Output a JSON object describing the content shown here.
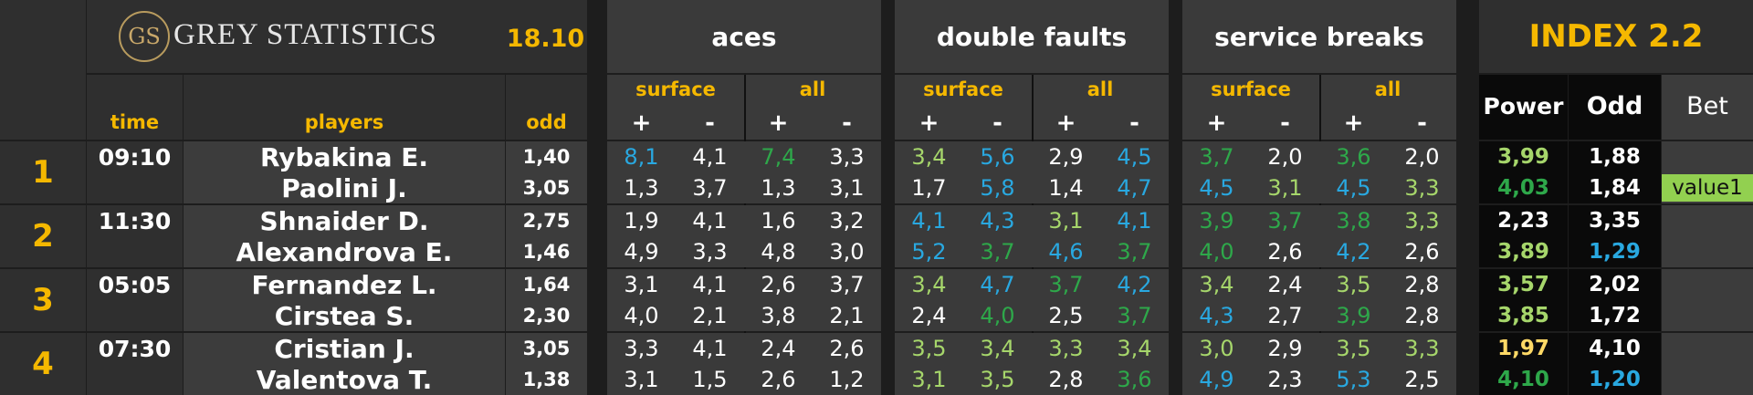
{
  "header": {
    "logo_mark": "GS",
    "brand": "GREY STATISTICS",
    "date": "18.10",
    "sections": [
      "aces",
      "double faults",
      "service breaks"
    ],
    "index_title": "INDEX 2.2",
    "col_time": "time",
    "col_players": "players",
    "col_odd": "odd",
    "sub_surface": "surface",
    "sub_all": "all",
    "plus": "+",
    "minus": "-",
    "col_power": "Power",
    "col_odd2": "Odd",
    "col_bet": "Bet"
  },
  "colors": {
    "white": "#ffffff",
    "blue": "#29a8e0",
    "green": "#2ea84a",
    "lightgreen": "#a6d66b",
    "yellow": "#ffd966",
    "accent": "#f5b800",
    "value_bg": "#92d050"
  },
  "matches": [
    {
      "num": "1",
      "time": "09:10",
      "players": [
        {
          "name": "Rybakina E.",
          "odd": "1,40",
          "stats": [
            [
              "8,1",
              "blue"
            ],
            [
              "4,1",
              "white"
            ],
            [
              "7,4",
              "green"
            ],
            [
              "3,3",
              "white"
            ],
            [
              "3,4",
              "lightgreen"
            ],
            [
              "5,6",
              "blue"
            ],
            [
              "2,9",
              "white"
            ],
            [
              "4,5",
              "blue"
            ],
            [
              "3,7",
              "green"
            ],
            [
              "2,0",
              "white"
            ],
            [
              "3,6",
              "green"
            ],
            [
              "2,0",
              "white"
            ]
          ],
          "power": [
            "3,99",
            "lightgreen"
          ],
          "odd2": [
            "1,88",
            "white"
          ],
          "bet": ""
        },
        {
          "name": "Paolini J.",
          "odd": "3,05",
          "stats": [
            [
              "1,3",
              "white"
            ],
            [
              "3,7",
              "white"
            ],
            [
              "1,3",
              "white"
            ],
            [
              "3,1",
              "white"
            ],
            [
              "1,7",
              "white"
            ],
            [
              "5,8",
              "blue"
            ],
            [
              "1,4",
              "white"
            ],
            [
              "4,7",
              "blue"
            ],
            [
              "4,5",
              "blue"
            ],
            [
              "3,1",
              "lightgreen"
            ],
            [
              "4,5",
              "blue"
            ],
            [
              "3,3",
              "lightgreen"
            ]
          ],
          "power": [
            "4,03",
            "green"
          ],
          "odd2": [
            "1,84",
            "white"
          ],
          "bet": "value1"
        }
      ]
    },
    {
      "num": "2",
      "time": "11:30",
      "players": [
        {
          "name": "Shnaider D.",
          "odd": "2,75",
          "stats": [
            [
              "1,9",
              "white"
            ],
            [
              "4,1",
              "white"
            ],
            [
              "1,6",
              "white"
            ],
            [
              "3,2",
              "white"
            ],
            [
              "4,1",
              "blue"
            ],
            [
              "4,3",
              "blue"
            ],
            [
              "3,1",
              "lightgreen"
            ],
            [
              "4,1",
              "blue"
            ],
            [
              "3,9",
              "green"
            ],
            [
              "3,7",
              "green"
            ],
            [
              "3,8",
              "green"
            ],
            [
              "3,3",
              "lightgreen"
            ]
          ],
          "power": [
            "2,23",
            "white"
          ],
          "odd2": [
            "3,35",
            "white"
          ],
          "bet": ""
        },
        {
          "name": "Alexandrova E.",
          "odd": "1,46",
          "stats": [
            [
              "4,9",
              "white"
            ],
            [
              "3,3",
              "white"
            ],
            [
              "4,8",
              "white"
            ],
            [
              "3,0",
              "white"
            ],
            [
              "5,2",
              "blue"
            ],
            [
              "3,7",
              "green"
            ],
            [
              "4,6",
              "blue"
            ],
            [
              "3,7",
              "green"
            ],
            [
              "4,0",
              "green"
            ],
            [
              "2,6",
              "white"
            ],
            [
              "4,2",
              "blue"
            ],
            [
              "2,6",
              "white"
            ]
          ],
          "power": [
            "3,89",
            "lightgreen"
          ],
          "odd2": [
            "1,29",
            "blue"
          ],
          "bet": ""
        }
      ]
    },
    {
      "num": "3",
      "time": "05:05",
      "players": [
        {
          "name": "Fernandez L.",
          "odd": "1,64",
          "stats": [
            [
              "3,1",
              "white"
            ],
            [
              "4,1",
              "white"
            ],
            [
              "2,6",
              "white"
            ],
            [
              "3,7",
              "white"
            ],
            [
              "3,4",
              "lightgreen"
            ],
            [
              "4,7",
              "blue"
            ],
            [
              "3,7",
              "green"
            ],
            [
              "4,2",
              "blue"
            ],
            [
              "3,4",
              "lightgreen"
            ],
            [
              "2,4",
              "white"
            ],
            [
              "3,5",
              "lightgreen"
            ],
            [
              "2,8",
              "white"
            ]
          ],
          "power": [
            "3,57",
            "lightgreen"
          ],
          "odd2": [
            "2,02",
            "white"
          ],
          "bet": ""
        },
        {
          "name": "Cirstea S.",
          "odd": "2,30",
          "stats": [
            [
              "4,0",
              "white"
            ],
            [
              "2,1",
              "white"
            ],
            [
              "3,8",
              "white"
            ],
            [
              "2,1",
              "white"
            ],
            [
              "2,4",
              "white"
            ],
            [
              "4,0",
              "green"
            ],
            [
              "2,5",
              "white"
            ],
            [
              "3,7",
              "green"
            ],
            [
              "4,3",
              "blue"
            ],
            [
              "2,7",
              "white"
            ],
            [
              "3,9",
              "green"
            ],
            [
              "2,8",
              "white"
            ]
          ],
          "power": [
            "3,85",
            "lightgreen"
          ],
          "odd2": [
            "1,72",
            "white"
          ],
          "bet": ""
        }
      ]
    },
    {
      "num": "4",
      "time": "07:30",
      "players": [
        {
          "name": "Cristian J.",
          "odd": "3,05",
          "stats": [
            [
              "3,3",
              "white"
            ],
            [
              "4,1",
              "white"
            ],
            [
              "2,4",
              "white"
            ],
            [
              "2,6",
              "white"
            ],
            [
              "3,5",
              "lightgreen"
            ],
            [
              "3,4",
              "lightgreen"
            ],
            [
              "3,3",
              "lightgreen"
            ],
            [
              "3,4",
              "lightgreen"
            ],
            [
              "3,0",
              "lightgreen"
            ],
            [
              "2,9",
              "white"
            ],
            [
              "3,5",
              "lightgreen"
            ],
            [
              "3,3",
              "lightgreen"
            ]
          ],
          "power": [
            "1,97",
            "yellow"
          ],
          "odd2": [
            "4,10",
            "white"
          ],
          "bet": ""
        },
        {
          "name": "Valentova T.",
          "odd": "1,38",
          "stats": [
            [
              "3,1",
              "white"
            ],
            [
              "1,5",
              "white"
            ],
            [
              "2,6",
              "white"
            ],
            [
              "1,2",
              "white"
            ],
            [
              "3,1",
              "lightgreen"
            ],
            [
              "3,5",
              "lightgreen"
            ],
            [
              "2,8",
              "white"
            ],
            [
              "3,6",
              "green"
            ],
            [
              "4,9",
              "blue"
            ],
            [
              "2,3",
              "white"
            ],
            [
              "5,3",
              "blue"
            ],
            [
              "2,5",
              "white"
            ]
          ],
          "power": [
            "4,10",
            "green"
          ],
          "odd2": [
            "1,20",
            "blue"
          ],
          "bet": ""
        }
      ]
    }
  ]
}
